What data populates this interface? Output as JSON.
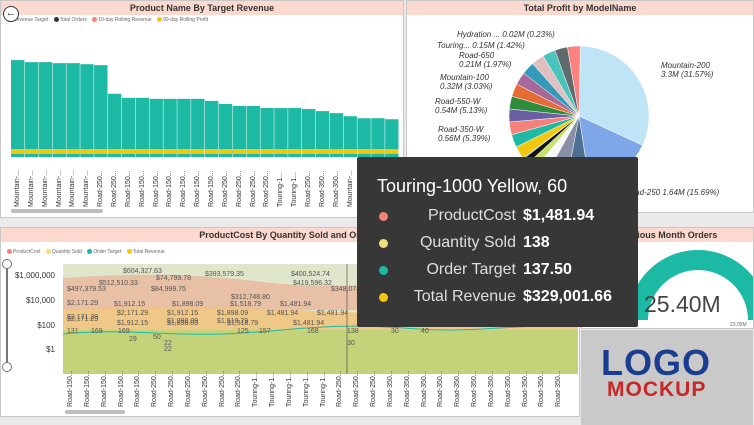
{
  "panels": {
    "revenue_chart": {
      "title": "Product Name By Target Revenue",
      "legend": [
        {
          "label": "Revenue Target",
          "color": "#1cb9a5"
        },
        {
          "label": "Total Orders",
          "color": "#333333"
        },
        {
          "label": "10-day Rolling Revenue",
          "color": "#f4817a"
        },
        {
          "label": "90-day Rolling Profit",
          "color": "#f2c80f"
        }
      ],
      "x_labels": [
        "Mountain-...",
        "Mountain-...",
        "Mountain-...",
        "Mountain-...",
        "Mountain-...",
        "Mountain-...",
        "Road-250...",
        "Road-250...",
        "Road-150...",
        "Road-150...",
        "Road-150...",
        "Road-150...",
        "Road-150...",
        "Road-150...",
        "Road-150...",
        "Road-250...",
        "Road-250...",
        "Road-250...",
        "Road-250...",
        "Touring-1...",
        "Touring-1...",
        "Road-250...",
        "Road-350...",
        "Road-350...",
        "Mountain-...",
        "Touring-1...",
        "Road-350...",
        "Mountain-..."
      ]
    },
    "profit_pie": {
      "title": "Total Profit by ModelName",
      "labels": [
        {
          "name": "Hydration ...",
          "value": "0.02M (0.23%)"
        },
        {
          "name": "Touring...",
          "value": "0.15M (1.42%)"
        },
        {
          "name": "Road-650",
          "value": "0.21M (1.97%)"
        },
        {
          "name": "Mountain-100",
          "value": "0.32M (3.03%)"
        },
        {
          "name": "Road-550-W",
          "value": "0.54M (5.13%)"
        },
        {
          "name": "Road-350-W",
          "value": "0.56M (5.39%)"
        },
        {
          "name": "Mountain-200",
          "value": "3.3M (31.57%)"
        },
        {
          "name": "Road-250",
          "value": "1.64M (15.69%)"
        }
      ]
    },
    "cost_chart": {
      "title": "ProductCost By Quantity Sold and Order...",
      "legend": [
        {
          "label": "ProductCost",
          "color": "#f4817a"
        },
        {
          "label": "Quantity Sold",
          "color": "#f2dd77"
        },
        {
          "label": "Order Target",
          "color": "#1cb9a5"
        },
        {
          "label": "Total Revenue",
          "color": "#f2c80f"
        }
      ],
      "y_ticks": [
        "$1,000,000",
        "$10,000",
        "$100",
        "$1"
      ],
      "data_labels": [
        "$604,327.63",
        "$74,799.78",
        "$393,579.35",
        "$400,524.74",
        "$497,379.53",
        "$512,510.33",
        "$84,999.75",
        "$419,596.32",
        "$348,074.",
        "$312,748.80",
        "$2,171.29",
        "$1,912.15",
        "$1,898.09",
        "$1,518.79",
        "$1,481.94",
        "$2,171.29",
        "$2,171.29",
        "$1,912.15",
        "$1,898.09",
        "$1,898.09",
        "$1,518.79",
        "$1,481.94",
        "$1,481.94",
        "$2,171.29",
        "$1,912.15",
        "$1,898.09",
        "$1,518.79",
        "$1,481.94",
        "131",
        "169",
        "169",
        "29",
        "50",
        "22",
        "22",
        "125",
        "157",
        "168",
        "138",
        "30",
        "30",
        "40"
      ],
      "x_labels": [
        "Road-150...",
        "Road-150...",
        "Road-150...",
        "Road-150...",
        "Road-150...",
        "Road-250...",
        "Road-250...",
        "Road-250...",
        "Road-250...",
        "Road-250...",
        "Road-250...",
        "Touring-1...",
        "Touring-1...",
        "Touring-1...",
        "Touring-1...",
        "Touring-1...",
        "Road-250...",
        "Road-250...",
        "Road-250...",
        "Road-350...",
        "Road-350...",
        "Road-350...",
        "Road-350...",
        "Road-350...",
        "Road-350...",
        "Road-350...",
        "Road-350...",
        "Road-350...",
        "Road-350...",
        "Road-350..."
      ]
    },
    "previous_orders": {
      "title": "Previous Month Orders",
      "value": "25.40M",
      "min_label": "0.00M",
      "max_label": "23.05M"
    },
    "logo": {
      "line1": "LOGO",
      "line2": "MOCKUP"
    }
  },
  "tooltip": {
    "title": "Touring-1000 Yellow, 60",
    "rows": [
      {
        "label": "ProductCost",
        "value": "$1,481.94",
        "color": "#f4817a"
      },
      {
        "label": "Quantity Sold",
        "value": "138",
        "color": "#f2dd77"
      },
      {
        "label": "Order Target",
        "value": "137.50",
        "color": "#1cb9a5"
      },
      {
        "label": "Total Revenue",
        "value": "$329,001.66",
        "color": "#f2c80f"
      }
    ]
  },
  "chart_data": [
    {
      "type": "bar",
      "title": "Product Name By Target Revenue",
      "xlabel": "",
      "ylabel": "",
      "series": [
        {
          "name": "Revenue Target",
          "values": [
            0.95,
            0.93,
            0.93,
            0.92,
            0.92,
            0.91,
            0.9,
            0.62,
            0.58,
            0.58,
            0.57,
            0.57,
            0.57,
            0.57,
            0.55,
            0.52,
            0.5,
            0.5,
            0.48,
            0.48,
            0.48,
            0.47,
            0.45,
            0.43,
            0.4,
            0.38,
            0.38,
            0.37
          ]
        }
      ],
      "grid": false,
      "legend": "top-left"
    },
    {
      "type": "pie",
      "title": "Total Profit by ModelName",
      "categories": [
        "Mountain-200",
        "Road-250",
        "Road-350-W",
        "Road-550-W",
        "Mountain-100",
        "Road-650",
        "Touring...",
        "Hydration ..."
      ],
      "values": [
        31.57,
        15.69,
        5.39,
        5.13,
        3.03,
        1.97,
        1.42,
        0.23
      ]
    }
  ]
}
